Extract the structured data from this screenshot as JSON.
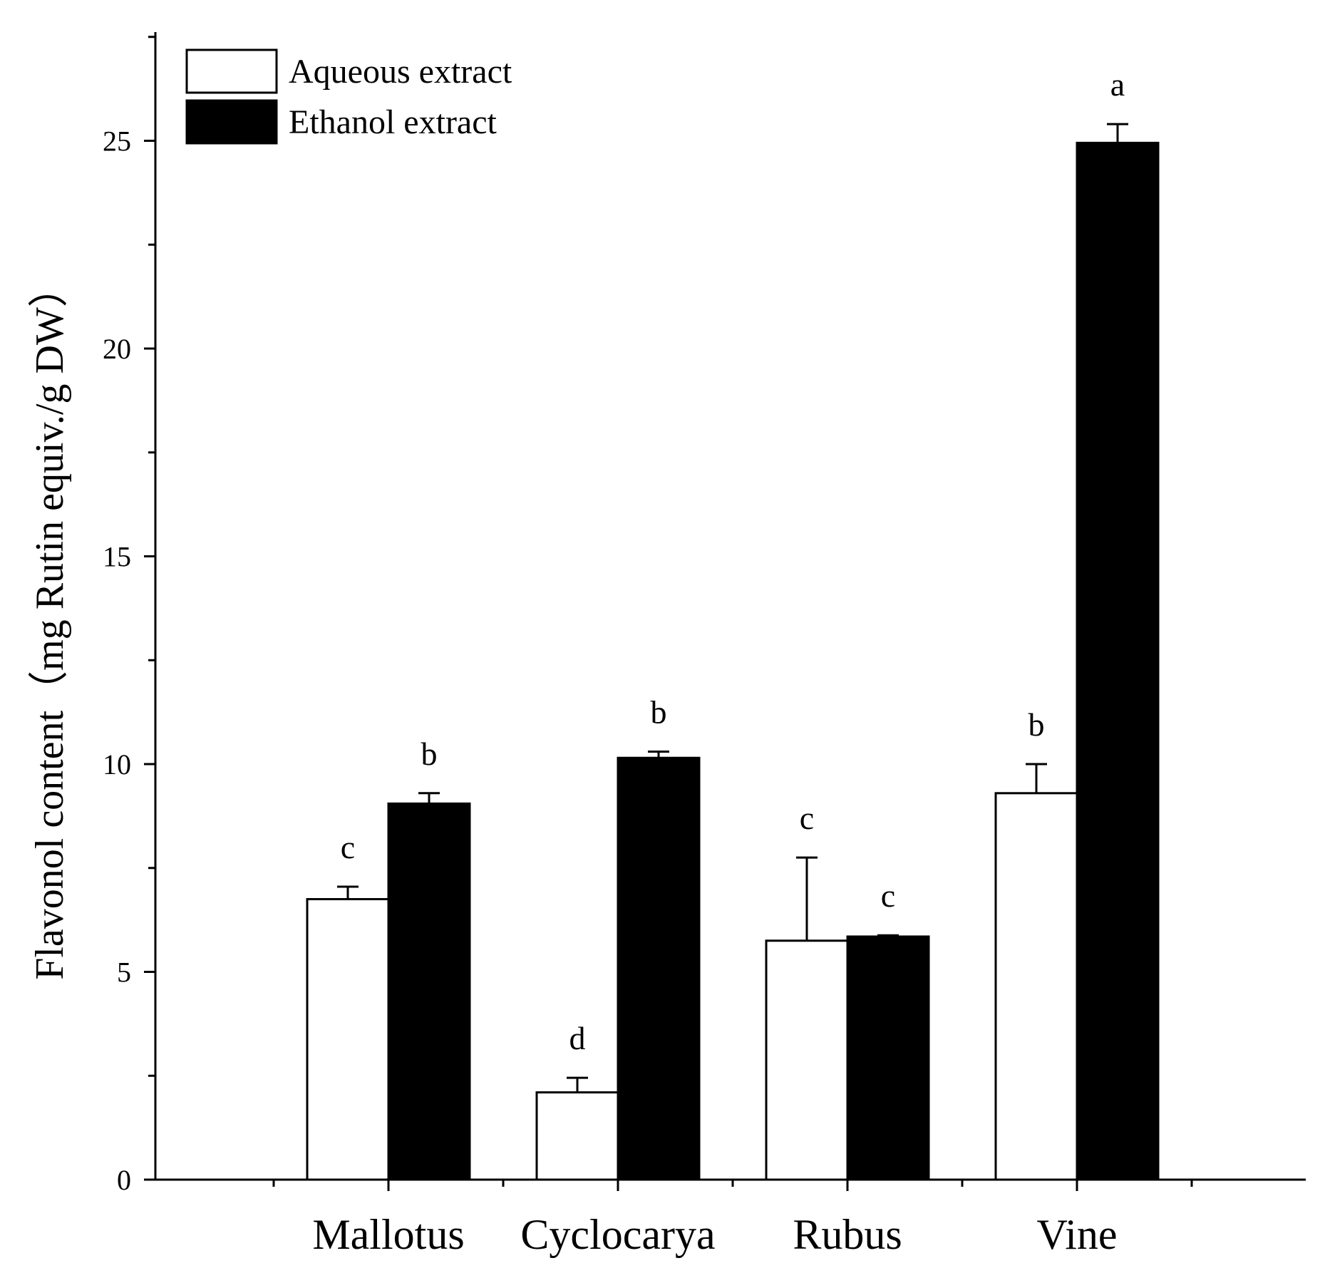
{
  "chart_data": {
    "type": "bar",
    "title": "",
    "xlabel": "",
    "ylabel": "Flavonol content（mg Rutin equiv./g DW）",
    "categories": [
      "Mallotus",
      "Cyclocarya",
      "Rubus",
      "Vine"
    ],
    "series": [
      {
        "name": "Aqueous extract",
        "color": "#ffffff",
        "values": [
          6.75,
          2.1,
          5.75,
          9.3
        ],
        "errors": [
          0.3,
          0.35,
          2.0,
          0.7
        ],
        "letters": [
          "c",
          "d",
          "c",
          "b"
        ]
      },
      {
        "name": "Ethanol extract",
        "color": "#000000",
        "values": [
          9.05,
          10.15,
          5.85,
          24.95
        ],
        "errors": [
          0.25,
          0.15,
          0.03,
          0.45
        ],
        "letters": [
          "b",
          "b",
          "c",
          "a"
        ]
      }
    ],
    "ylim": [
      0,
      27.7
    ],
    "yticks": [
      0,
      5,
      10,
      15,
      20,
      25
    ],
    "grid": false,
    "legend": "top-left"
  }
}
